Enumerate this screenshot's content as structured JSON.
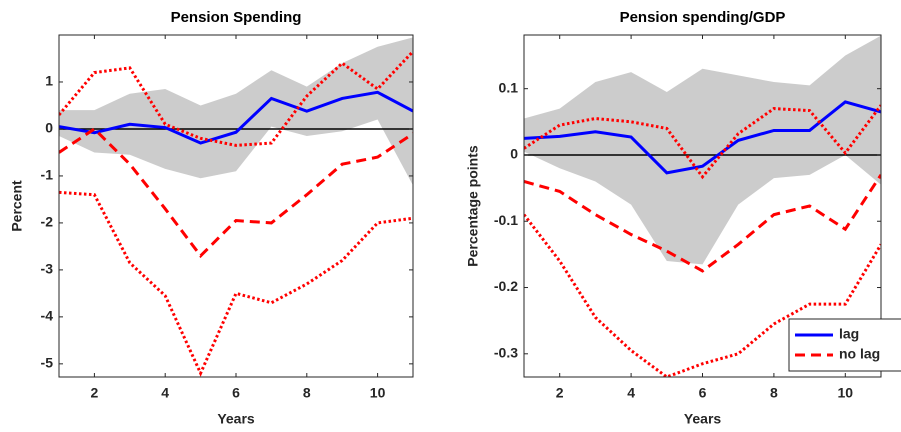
{
  "chart_data": [
    {
      "type": "line",
      "title": "Pension Spending",
      "xlabel": "Years",
      "ylabel": "Percent",
      "x": [
        1,
        2,
        3,
        4,
        5,
        6,
        7,
        8,
        9,
        10,
        11
      ],
      "xlim": [
        1,
        11
      ],
      "xticks": [
        2,
        4,
        6,
        8,
        10
      ],
      "ylim": [
        -5.28,
        2.0
      ],
      "yticks": [
        1,
        0,
        -1,
        -2,
        -3,
        -4,
        -5
      ],
      "hline": 0,
      "band": {
        "color": "#cccccc",
        "upper": [
          0.4,
          0.4,
          0.75,
          0.85,
          0.5,
          0.75,
          1.25,
          0.9,
          1.4,
          1.75,
          1.95
        ],
        "lower": [
          -0.15,
          -0.5,
          -0.55,
          -0.85,
          -1.05,
          -0.9,
          0.05,
          -0.15,
          -0.05,
          0.2,
          -1.2
        ]
      },
      "series": [
        {
          "color": "#0000ff",
          "style": "solid",
          "values": [
            0.05,
            -0.08,
            0.1,
            0.03,
            -0.3,
            -0.07,
            0.65,
            0.38,
            0.65,
            0.78,
            0.38
          ]
        },
        {
          "color": "#ff0000",
          "style": "dashed",
          "values": [
            -0.5,
            0.0,
            -0.75,
            -1.7,
            -2.7,
            -1.95,
            -2.0,
            -1.4,
            -0.75,
            -0.6,
            -0.1
          ]
        },
        {
          "color": "#ff0000",
          "style": "dotted",
          "values": [
            0.3,
            1.2,
            1.3,
            0.1,
            -0.2,
            -0.35,
            -0.3,
            0.7,
            1.4,
            0.85,
            1.65
          ]
        },
        {
          "color": "#ff0000",
          "style": "dotted",
          "values": [
            -1.35,
            -1.4,
            -2.85,
            -3.55,
            -5.2,
            -3.5,
            -3.7,
            -3.3,
            -2.8,
            -2.0,
            -1.9
          ]
        }
      ]
    },
    {
      "type": "line",
      "title": "Pension spending/GDP",
      "xlabel": "Years",
      "ylabel": "Percentage points",
      "x": [
        1,
        2,
        3,
        4,
        5,
        6,
        7,
        8,
        9,
        10,
        11
      ],
      "xlim": [
        1,
        11
      ],
      "xticks": [
        2,
        4,
        6,
        8,
        10
      ],
      "ylim": [
        -0.335,
        0.181
      ],
      "yticks": [
        0.1,
        0,
        -0.1,
        -0.2,
        -0.3
      ],
      "hline": 0,
      "legend": "lower right",
      "band": {
        "color": "#cccccc",
        "upper": [
          0.055,
          0.07,
          0.11,
          0.125,
          0.095,
          0.13,
          0.12,
          0.11,
          0.105,
          0.15,
          0.18
        ],
        "lower": [
          0.005,
          -0.02,
          -0.04,
          -0.075,
          -0.16,
          -0.165,
          -0.075,
          -0.035,
          -0.03,
          0.0,
          -0.045
        ]
      },
      "series": [
        {
          "name": "lag",
          "color": "#0000ff",
          "style": "solid",
          "values": [
            0.025,
            0.028,
            0.035,
            0.027,
            -0.027,
            -0.017,
            0.022,
            0.037,
            0.037,
            0.08,
            0.065
          ]
        },
        {
          "name": "no lag",
          "color": "#ff0000",
          "style": "dashed",
          "values": [
            -0.04,
            -0.055,
            -0.09,
            -0.12,
            -0.145,
            -0.175,
            -0.135,
            -0.09,
            -0.077,
            -0.112,
            -0.03
          ]
        },
        {
          "color": "#ff0000",
          "style": "dotted",
          "values": [
            0.01,
            0.045,
            0.055,
            0.05,
            0.04,
            -0.033,
            0.032,
            0.07,
            0.067,
            0.003,
            0.075
          ]
        },
        {
          "color": "#ff0000",
          "style": "dotted",
          "values": [
            -0.09,
            -0.16,
            -0.245,
            -0.295,
            -0.335,
            -0.315,
            -0.3,
            -0.255,
            -0.225,
            -0.225,
            -0.135
          ]
        }
      ]
    }
  ]
}
